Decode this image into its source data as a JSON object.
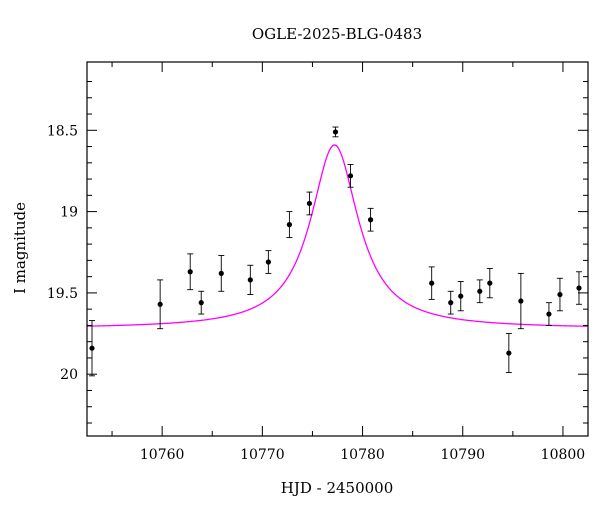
{
  "chart_data": {
    "type": "scatter",
    "title": "OGLE-2025-BLG-0483",
    "xlabel": "HJD - 2450000",
    "ylabel": "I magnitude",
    "xlim": [
      10752.5,
      10802.5
    ],
    "ylim": [
      20.38,
      18.08
    ],
    "y_inverted": true,
    "xticks": [
      10760,
      10770,
      10780,
      10790,
      10800
    ],
    "xtick_labels": [
      "10760",
      "10770",
      "10780",
      "10790",
      "10800"
    ],
    "yticks": [
      18.5,
      19,
      19.5,
      20
    ],
    "ytick_labels": [
      "18.5",
      "19",
      "19.5",
      "20"
    ],
    "grid": false,
    "legend": "none",
    "colors": {
      "model": "#ff00ff",
      "points": "#000000",
      "frame": "#000000"
    },
    "series": [
      {
        "type": "scatter_errorbar",
        "x": [
          10753.0,
          10759.8,
          10762.8,
          10763.9,
          10765.9,
          10768.8,
          10770.6,
          10772.7,
          10774.7,
          10777.3,
          10778.8,
          10780.8,
          10786.9,
          10788.8,
          10789.8,
          10791.7,
          10792.7,
          10794.6,
          10795.8,
          10798.6,
          10799.7,
          10801.6
        ],
        "y": [
          19.84,
          19.57,
          19.37,
          19.56,
          19.38,
          19.42,
          19.31,
          19.08,
          18.95,
          18.51,
          18.78,
          19.05,
          19.44,
          19.56,
          19.52,
          19.49,
          19.44,
          19.87,
          19.55,
          19.63,
          19.51,
          19.47
        ],
        "yerr": [
          0.17,
          0.15,
          0.11,
          0.07,
          0.11,
          0.09,
          0.07,
          0.08,
          0.07,
          0.03,
          0.07,
          0.07,
          0.1,
          0.07,
          0.09,
          0.07,
          0.09,
          0.12,
          0.17,
          0.07,
          0.1,
          0.1
        ]
      },
      {
        "type": "line",
        "model": "microlensing point-lens fit",
        "t0": 10777.2,
        "baseline_mag": 19.72,
        "peak_mag": 18.59,
        "width_days": 2.9
      }
    ]
  }
}
